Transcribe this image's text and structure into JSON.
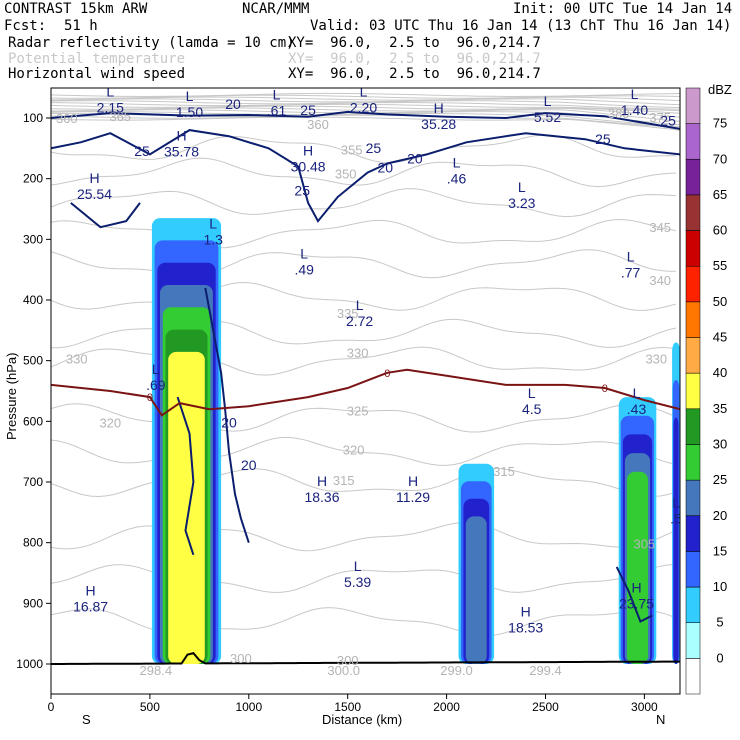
{
  "header": {
    "model": "CONTRAST 15km ARW",
    "org": "NCAR/MMM",
    "init": "Init: 00 UTC Tue 14 Jan 14",
    "fcst_label": "Fcst:",
    "fcst_value": "51 h",
    "valid": "Valid: 03 UTC Thu 16 Jan 14 (13 ChT Thu 16 Jan 14)",
    "fields": [
      {
        "name": "Radar reflectivity (lamda = 10 cm)",
        "xy": "XY=  96.0,  2.5 to  96.0,214.7"
      },
      {
        "name": "Potential temperature",
        "xy": "XY=  96.0,  2.5 to  96.0,214.7"
      },
      {
        "name": "Horizontal wind speed",
        "xy": "XY=  96.0,  2.5 to  96.0,214.7"
      }
    ]
  },
  "chart_data": {
    "type": "cross-section",
    "title": "Radar reflectivity, potential temperature and horizontal wind speed cross section",
    "xlabel": "Distance (km)",
    "ylabel": "Pressure (hPa)",
    "xlim": [
      0,
      3180
    ],
    "ylim": [
      1050,
      60
    ],
    "x_ticks": [
      0,
      500,
      1000,
      1500,
      2000,
      2500,
      3000
    ],
    "y_ticks": [
      100,
      200,
      300,
      400,
      500,
      600,
      700,
      800,
      900,
      1000
    ],
    "end_labels": {
      "left": "S",
      "right": "N"
    },
    "colorbar": {
      "unit": "dBZ",
      "levels": [
        0,
        5,
        10,
        15,
        20,
        25,
        30,
        35,
        40,
        45,
        50,
        55,
        60,
        65,
        70,
        75
      ],
      "colors": [
        "#ffffff",
        "#aaffff",
        "#33ccff",
        "#3366ff",
        "#2222cc",
        "#4477bb",
        "#33cc33",
        "#229922",
        "#ffff44",
        "#ffaa44",
        "#ff7700",
        "#ff2200",
        "#cc0000",
        "#993333",
        "#772299",
        "#aa66cc",
        "#cc99cc"
      ]
    },
    "reflectivity_cells": [
      {
        "x_start": 510,
        "x_end": 860,
        "p_top": 265,
        "p_bottom": 1000,
        "max_dbz": 35
      },
      {
        "x_start": 2060,
        "x_end": 2240,
        "p_top": 670,
        "p_bottom": 1000,
        "max_dbz": 20
      },
      {
        "x_start": 2870,
        "x_end": 3060,
        "p_top": 560,
        "p_bottom": 1000,
        "max_dbz": 25
      },
      {
        "x_start": 3140,
        "x_end": 3180,
        "p_top": 470,
        "p_bottom": 1000,
        "max_dbz": 15
      }
    ],
    "freezing_line": {
      "label": "0",
      "x": [
        0,
        300,
        500,
        560,
        650,
        800,
        1000,
        1300,
        1500,
        1700,
        1800,
        2000,
        2300,
        2600,
        2800,
        3000,
        3180
      ],
      "p": [
        540,
        550,
        560,
        590,
        570,
        580,
        575,
        560,
        545,
        520,
        515,
        525,
        540,
        540,
        545,
        565,
        580
      ]
    },
    "theta_labels": [
      {
        "value": "365",
        "x": 350,
        "p": 105
      },
      {
        "value": "360",
        "x": 80,
        "p": 108
      },
      {
        "value": "360",
        "x": 1350,
        "p": 118
      },
      {
        "value": "380",
        "x": 2870,
        "p": 100
      },
      {
        "value": "375",
        "x": 3080,
        "p": 107
      },
      {
        "value": "355",
        "x": 1520,
        "p": 160
      },
      {
        "value": "350",
        "x": 1490,
        "p": 200
      },
      {
        "value": "345",
        "x": 3080,
        "p": 288
      },
      {
        "value": "340",
        "x": 3080,
        "p": 375
      },
      {
        "value": "335",
        "x": 1500,
        "p": 430
      },
      {
        "value": "330",
        "x": 130,
        "p": 505
      },
      {
        "value": "330",
        "x": 1550,
        "p": 495
      },
      {
        "value": "330",
        "x": 3060,
        "p": 505
      },
      {
        "value": "325",
        "x": 1550,
        "p": 590
      },
      {
        "value": "320",
        "x": 300,
        "p": 610
      },
      {
        "value": "320",
        "x": 1530,
        "p": 655
      },
      {
        "value": "315",
        "x": 1480,
        "p": 705
      },
      {
        "value": "315",
        "x": 2290,
        "p": 690
      },
      {
        "value": "305",
        "x": 3000,
        "p": 810
      },
      {
        "value": "300",
        "x": 960,
        "p": 998
      },
      {
        "value": "300",
        "x": 1500,
        "p": 1002
      }
    ],
    "theta_bottom_labels": [
      {
        "value": "298.4",
        "x": 530,
        "p": 1005
      },
      {
        "value": "300.0",
        "x": 1480,
        "p": 1005
      },
      {
        "value": "299.0",
        "x": 2050,
        "p": 1005
      },
      {
        "value": "299.4",
        "x": 2500,
        "p": 1005
      }
    ],
    "wind_contour_labels": [
      {
        "value": "20",
        "x": 920,
        "p": 85
      },
      {
        "value": "25",
        "x": 1300,
        "p": 95
      },
      {
        "value": "25",
        "x": 460,
        "p": 163
      },
      {
        "value": "25",
        "x": 1630,
        "p": 158
      },
      {
        "value": "20",
        "x": 1690,
        "p": 190
      },
      {
        "value": "20",
        "x": 1840,
        "p": 175
      },
      {
        "value": "25",
        "x": 1270,
        "p": 228
      },
      {
        "value": "25",
        "x": 2790,
        "p": 143
      },
      {
        "value": "25",
        "x": 3120,
        "p": 112
      },
      {
        "value": "20",
        "x": 900,
        "p": 610
      },
      {
        "value": "20",
        "x": 1000,
        "p": 680
      }
    ],
    "extrema": [
      {
        "type": "L",
        "value": "2.15",
        "x": 300,
        "p": 78
      },
      {
        "type": "L",
        "value": "1.50",
        "x": 700,
        "p": 85
      },
      {
        "type": "L",
        "value": ".61",
        "x": 1140,
        "p": 83
      },
      {
        "type": "L",
        "value": "2.20",
        "x": 1580,
        "p": 78
      },
      {
        "type": "L",
        "value": "5.52",
        "x": 2510,
        "p": 93
      },
      {
        "type": "L",
        "value": "1.40",
        "x": 2950,
        "p": 82
      },
      {
        "type": "H",
        "value": "35.28",
        "x": 1960,
        "p": 105
      },
      {
        "type": "H",
        "value": "35.78",
        "x": 660,
        "p": 150
      },
      {
        "type": "H",
        "value": "30.48",
        "x": 1300,
        "p": 175
      },
      {
        "type": "L",
        "value": ".46",
        "x": 2050,
        "p": 195
      },
      {
        "type": "H",
        "value": "25.54",
        "x": 220,
        "p": 220
      },
      {
        "type": "L",
        "value": "3.23",
        "x": 2380,
        "p": 235
      },
      {
        "type": "L",
        "value": "1.3",
        "x": 820,
        "p": 295
      },
      {
        "type": "L",
        "value": ".49",
        "x": 1280,
        "p": 345
      },
      {
        "type": "L",
        "value": ".77",
        "x": 2930,
        "p": 350
      },
      {
        "type": "L",
        "value": "2.72",
        "x": 1560,
        "p": 430
      },
      {
        "type": "L",
        "value": ".69",
        "x": 530,
        "p": 535
      },
      {
        "type": "L",
        "value": "4.5",
        "x": 2430,
        "p": 575
      },
      {
        "type": "L",
        "value": ".43",
        "x": 2960,
        "p": 575
      },
      {
        "type": "H",
        "value": "18.36",
        "x": 1370,
        "p": 720
      },
      {
        "type": "H",
        "value": "11.29",
        "x": 1830,
        "p": 720
      },
      {
        "type": "L",
        "value": ".5",
        "x": 3160,
        "p": 755
      },
      {
        "type": "L",
        "value": "5.39",
        "x": 1550,
        "p": 860
      },
      {
        "type": "H",
        "value": "16.87",
        "x": 200,
        "p": 900
      },
      {
        "type": "H",
        "value": "23.75",
        "x": 2960,
        "p": 895
      },
      {
        "type": "H",
        "value": "18.53",
        "x": 2400,
        "p": 935
      }
    ]
  }
}
